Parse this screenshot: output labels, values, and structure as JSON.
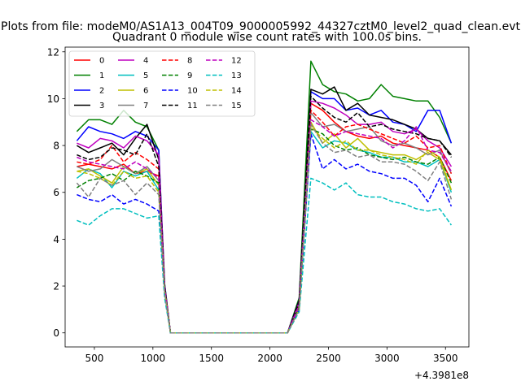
{
  "figure": {
    "suptitle": "Plots from file: modeM0/AS1A13_004T09_9000005992_44327cztM0_level2_quad_clean.evt"
  },
  "chart_data": {
    "type": "line",
    "title": "Quadrant 0 module wise count rates with 100.0s bins.",
    "xlabel": "",
    "ylabel": "",
    "x_offset_label": "+4.3981e8",
    "xlim": [
      250,
      3700
    ],
    "ylim": [
      -0.6,
      12.2
    ],
    "x_ticks": [
      500,
      1000,
      1500,
      2000,
      2500,
      3000,
      3500
    ],
    "x_tick_labels": [
      "500",
      "1000",
      "1500",
      "2000",
      "2500",
      "3000",
      "3500"
    ],
    "y_ticks": [
      0,
      2,
      4,
      6,
      8,
      10,
      12
    ],
    "y_tick_labels": [
      "0",
      "2",
      "4",
      "6",
      "8",
      "10",
      "12"
    ],
    "legend_position": "upper-left",
    "legend_columns": 4,
    "x": [
      350,
      450,
      550,
      650,
      750,
      850,
      950,
      1050,
      1100,
      1150,
      1250,
      1350,
      1450,
      1550,
      1650,
      1750,
      1850,
      1950,
      2050,
      2150,
      2250,
      2350,
      2450,
      2550,
      2650,
      2750,
      2850,
      2950,
      3050,
      3150,
      3250,
      3350,
      3450,
      3550
    ],
    "series": [
      {
        "name": "0",
        "color": "#ff0000",
        "dash": "solid",
        "values": [
          7.1,
          7.2,
          7.1,
          7.0,
          7.2,
          6.8,
          6.9,
          6.7,
          2.0,
          0,
          0,
          0,
          0,
          0,
          0,
          0,
          0,
          0,
          0,
          0,
          1.2,
          9.8,
          9.5,
          9.0,
          8.6,
          8.4,
          8.3,
          8.4,
          8.1,
          8.0,
          7.9,
          7.8,
          7.5,
          6.5
        ]
      },
      {
        "name": "1",
        "color": "#008000",
        "dash": "solid",
        "values": [
          8.6,
          9.1,
          9.1,
          8.9,
          9.5,
          9.0,
          8.8,
          7.8,
          2.1,
          0,
          0,
          0,
          0,
          0,
          0,
          0,
          0,
          0,
          0,
          0,
          1.5,
          11.6,
          10.6,
          10.3,
          10.2,
          9.9,
          10.0,
          10.6,
          10.1,
          10.0,
          9.9,
          9.9,
          9.2,
          8.1
        ]
      },
      {
        "name": "2",
        "color": "#0000ff",
        "dash": "solid",
        "values": [
          8.2,
          8.8,
          8.6,
          8.5,
          8.3,
          8.6,
          8.4,
          7.8,
          2.1,
          0,
          0,
          0,
          0,
          0,
          0,
          0,
          0,
          0,
          0,
          0,
          1.4,
          10.3,
          10.0,
          10.0,
          9.5,
          9.6,
          9.3,
          9.5,
          9.0,
          8.9,
          8.6,
          9.5,
          9.5,
          8.1
        ]
      },
      {
        "name": "3",
        "color": "#000000",
        "dash": "solid",
        "values": [
          8.0,
          7.7,
          7.9,
          8.1,
          7.6,
          8.3,
          8.9,
          7.4,
          2.0,
          0,
          0,
          0,
          0,
          0,
          0,
          0,
          0,
          0,
          0,
          0,
          1.4,
          10.4,
          10.2,
          10.5,
          9.5,
          9.8,
          9.3,
          9.2,
          9.1,
          8.9,
          8.7,
          8.3,
          8.2,
          7.6
        ]
      },
      {
        "name": "4",
        "color": "#bf00bf",
        "dash": "solid",
        "values": [
          8.1,
          7.9,
          8.3,
          8.2,
          7.9,
          8.4,
          8.2,
          7.6,
          2.0,
          0,
          0,
          0,
          0,
          0,
          0,
          0,
          0,
          0,
          0,
          0,
          1.3,
          9.9,
          9.8,
          9.6,
          9.3,
          8.9,
          8.9,
          9.0,
          8.6,
          8.5,
          8.7,
          8.2,
          7.9,
          7.1
        ]
      },
      {
        "name": "5",
        "color": "#00bfbf",
        "dash": "solid",
        "values": [
          6.6,
          7.0,
          6.8,
          6.2,
          6.9,
          6.7,
          6.9,
          6.1,
          1.8,
          0,
          0,
          0,
          0,
          0,
          0,
          0,
          0,
          0,
          0,
          0,
          1.0,
          8.6,
          7.9,
          8.2,
          8.1,
          7.8,
          7.7,
          7.5,
          7.5,
          7.3,
          7.3,
          7.1,
          7.4,
          6.0
        ]
      },
      {
        "name": "6",
        "color": "#bfbf00",
        "dash": "solid",
        "values": [
          6.9,
          7.0,
          6.7,
          6.4,
          7.1,
          6.8,
          7.0,
          6.3,
          1.8,
          0,
          0,
          0,
          0,
          0,
          0,
          0,
          0,
          0,
          0,
          0,
          1.1,
          9.0,
          8.1,
          8.5,
          7.9,
          8.3,
          7.8,
          7.7,
          7.6,
          7.6,
          7.4,
          7.7,
          7.4,
          6.1
        ]
      },
      {
        "name": "7",
        "color": "#808080",
        "dash": "solid",
        "values": [
          7.1,
          6.9,
          7.0,
          7.4,
          7.1,
          6.8,
          7.1,
          6.5,
          1.9,
          0,
          0,
          0,
          0,
          0,
          0,
          0,
          0,
          0,
          0,
          0,
          1.2,
          9.4,
          8.8,
          8.9,
          8.6,
          8.7,
          8.8,
          8.2,
          8.0,
          8.1,
          7.9,
          7.6,
          7.8,
          6.8
        ]
      },
      {
        "name": "8",
        "color": "#ff0000",
        "dash": "dashed",
        "values": [
          7.3,
          7.2,
          7.4,
          8.0,
          7.3,
          7.7,
          7.4,
          7.0,
          2.0,
          0,
          0,
          0,
          0,
          0,
          0,
          0,
          0,
          0,
          0,
          0,
          1.2,
          9.5,
          9.0,
          8.4,
          8.8,
          8.9,
          8.7,
          8.5,
          8.3,
          8.1,
          8.4,
          7.9,
          8.0,
          6.8
        ]
      },
      {
        "name": "9",
        "color": "#008000",
        "dash": "dashed",
        "values": [
          6.2,
          6.5,
          6.6,
          6.8,
          6.5,
          6.9,
          6.7,
          6.4,
          1.9,
          0,
          0,
          0,
          0,
          0,
          0,
          0,
          0,
          0,
          0,
          0,
          1.1,
          8.7,
          8.5,
          8.0,
          7.8,
          7.9,
          7.6,
          7.5,
          7.4,
          7.5,
          7.3,
          7.2,
          7.5,
          6.4
        ]
      },
      {
        "name": "10",
        "color": "#0000ff",
        "dash": "dashed",
        "values": [
          5.9,
          5.7,
          5.6,
          5.9,
          5.5,
          5.7,
          5.5,
          5.2,
          1.7,
          0,
          0,
          0,
          0,
          0,
          0,
          0,
          0,
          0,
          0,
          0,
          1.0,
          8.5,
          7.0,
          7.4,
          7.0,
          7.2,
          6.9,
          6.8,
          6.6,
          6.6,
          6.3,
          5.6,
          6.6,
          5.4
        ]
      },
      {
        "name": "11",
        "color": "#000000",
        "dash": "dashed",
        "values": [
          7.6,
          7.4,
          7.5,
          7.9,
          7.8,
          7.6,
          8.5,
          7.1,
          2.0,
          0,
          0,
          0,
          0,
          0,
          0,
          0,
          0,
          0,
          0,
          0,
          1.3,
          10.1,
          9.6,
          9.2,
          9.0,
          9.4,
          8.8,
          8.9,
          8.7,
          8.6,
          8.5,
          8.3,
          8.2,
          7.5
        ]
      },
      {
        "name": "12",
        "color": "#bf00bf",
        "dash": "dashed",
        "values": [
          7.5,
          7.3,
          7.2,
          7.1,
          7.0,
          7.3,
          7.0,
          6.6,
          1.9,
          0,
          0,
          0,
          0,
          0,
          0,
          0,
          0,
          0,
          0,
          0,
          1.2,
          9.1,
          8.8,
          8.4,
          8.6,
          8.5,
          8.4,
          8.3,
          7.9,
          8.2,
          8.8,
          7.8,
          7.7,
          6.9
        ]
      },
      {
        "name": "13",
        "color": "#00bfbf",
        "dash": "dashed",
        "values": [
          4.8,
          4.6,
          5.0,
          5.3,
          5.3,
          5.1,
          4.9,
          5.0,
          1.5,
          0,
          0,
          0,
          0,
          0,
          0,
          0,
          0,
          0,
          0,
          0,
          0.9,
          6.6,
          6.4,
          6.1,
          6.4,
          5.9,
          5.8,
          5.8,
          5.6,
          5.5,
          5.3,
          5.2,
          5.3,
          4.6
        ]
      },
      {
        "name": "14",
        "color": "#bfbf00",
        "dash": "dashed",
        "values": [
          6.9,
          6.8,
          6.6,
          6.3,
          6.9,
          6.6,
          6.7,
          6.0,
          1.8,
          0,
          0,
          0,
          0,
          0,
          0,
          0,
          0,
          0,
          0,
          0,
          1.0,
          8.8,
          8.3,
          7.9,
          8.2,
          7.8,
          7.8,
          7.6,
          7.5,
          7.4,
          7.2,
          7.8,
          7.5,
          6.1
        ]
      },
      {
        "name": "15",
        "color": "#808080",
        "dash": "dashed",
        "values": [
          6.4,
          5.8,
          6.6,
          6.3,
          6.5,
          5.9,
          6.4,
          5.9,
          1.7,
          0,
          0,
          0,
          0,
          0,
          0,
          0,
          0,
          0,
          0,
          0,
          1.0,
          8.9,
          8.1,
          7.7,
          7.8,
          7.5,
          7.6,
          7.3,
          7.3,
          7.2,
          6.9,
          6.5,
          7.3,
          5.7
        ]
      }
    ]
  }
}
